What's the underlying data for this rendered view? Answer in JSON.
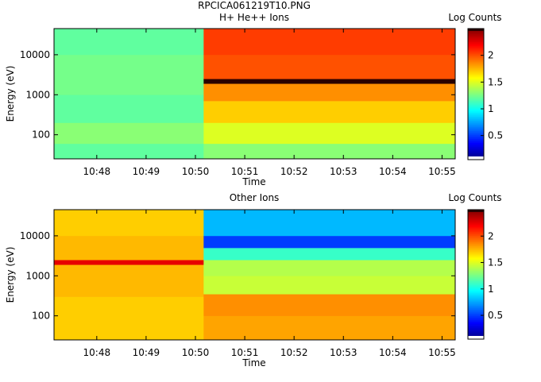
{
  "figure": {
    "title": "RPCICA061219T10.PNG"
  },
  "chart_data": [
    {
      "type": "heatmap",
      "title": "H+ He++ Ions",
      "xlabel": "Time",
      "ylabel": "Energy (eV)",
      "colorbar_label": "Log Counts",
      "y_scale": "log",
      "ylim": [
        25,
        45000
      ],
      "y_ticks": [
        {
          "value": 100,
          "label": "100"
        },
        {
          "value": 1000,
          "label": "1000"
        },
        {
          "value": 10000,
          "label": "10000"
        }
      ],
      "x_range": [
        "10:47:08",
        "10:55:16"
      ],
      "x_ticks": [
        {
          "value": "10:48:00",
          "label": "10:48"
        },
        {
          "value": "10:49:00",
          "label": "10:49"
        },
        {
          "value": "10:50:00",
          "label": "10:50"
        },
        {
          "value": "10:51:00",
          "label": "10:51"
        },
        {
          "value": "10:52:00",
          "label": "10:52"
        },
        {
          "value": "10:53:00",
          "label": "10:53"
        },
        {
          "value": "10:54:00",
          "label": "10:54"
        },
        {
          "value": "10:55:00",
          "label": "10:55"
        }
      ],
      "segments": [
        {
          "start": "10:47:08",
          "end": "10:50:10",
          "energy_levels": [
            {
              "energy_range": [
                25,
                60
              ],
              "log_counts": 1.2
            },
            {
              "energy_range": [
                60,
                200
              ],
              "log_counts": 1.3
            },
            {
              "energy_range": [
                200,
                1000
              ],
              "log_counts": 1.2
            },
            {
              "energy_range": [
                1000,
                10000
              ],
              "log_counts": 1.25
            },
            {
              "energy_range": [
                10000,
                45000
              ],
              "log_counts": 1.2
            }
          ]
        },
        {
          "start": "10:50:10",
          "end": "10:55:16",
          "energy_levels": [
            {
              "energy_range": [
                25,
                60
              ],
              "log_counts": 1.3
            },
            {
              "energy_range": [
                60,
                200
              ],
              "log_counts": 1.5
            },
            {
              "energy_range": [
                200,
                700
              ],
              "log_counts": 1.7
            },
            {
              "energy_range": [
                700,
                1900
              ],
              "log_counts": 1.85
            },
            {
              "energy_range": [
                1900,
                2500
              ],
              "log_counts": 2.5
            },
            {
              "energy_range": [
                2500,
                10000
              ],
              "log_counts": 2.0
            },
            {
              "energy_range": [
                10000,
                45000
              ],
              "log_counts": 2.05
            }
          ]
        }
      ],
      "colorbar": {
        "range": [
          0.05,
          2.5
        ],
        "ticks": [
          {
            "value": 0.5,
            "label": "0.5"
          },
          {
            "value": 1,
            "label": "1"
          },
          {
            "value": 1.5,
            "label": "1.5"
          },
          {
            "value": 2,
            "label": "2"
          }
        ]
      }
    },
    {
      "type": "heatmap",
      "title": "Other Ions",
      "xlabel": "Time",
      "ylabel": "Energy (eV)",
      "colorbar_label": "Log Counts",
      "y_scale": "log",
      "ylim": [
        25,
        45000
      ],
      "y_ticks": [
        {
          "value": 100,
          "label": "100"
        },
        {
          "value": 1000,
          "label": "1000"
        },
        {
          "value": 10000,
          "label": "10000"
        }
      ],
      "x_range": [
        "10:47:08",
        "10:55:16"
      ],
      "x_ticks": [
        {
          "value": "10:48:00",
          "label": "10:48"
        },
        {
          "value": "10:49:00",
          "label": "10:49"
        },
        {
          "value": "10:50:00",
          "label": "10:50"
        },
        {
          "value": "10:51:00",
          "label": "10:51"
        },
        {
          "value": "10:52:00",
          "label": "10:52"
        },
        {
          "value": "10:53:00",
          "label": "10:53"
        },
        {
          "value": "10:54:00",
          "label": "10:54"
        },
        {
          "value": "10:55:00",
          "label": "10:55"
        }
      ],
      "segments": [
        {
          "start": "10:47:08",
          "end": "10:50:10",
          "energy_levels": [
            {
              "energy_range": [
                25,
                300
              ],
              "log_counts": 1.7
            },
            {
              "energy_range": [
                300,
                1900
              ],
              "log_counts": 1.75
            },
            {
              "energy_range": [
                1900,
                2500
              ],
              "log_counts": 2.25
            },
            {
              "energy_range": [
                2500,
                10000
              ],
              "log_counts": 1.75
            },
            {
              "energy_range": [
                10000,
                45000
              ],
              "log_counts": 1.7
            }
          ]
        },
        {
          "start": "10:50:10",
          "end": "10:55:16",
          "energy_levels": [
            {
              "energy_range": [
                25,
                100
              ],
              "log_counts": 1.8
            },
            {
              "energy_range": [
                100,
                350
              ],
              "log_counts": 1.85
            },
            {
              "energy_range": [
                350,
                1000
              ],
              "log_counts": 1.45
            },
            {
              "energy_range": [
                1000,
                2500
              ],
              "log_counts": 1.4
            },
            {
              "energy_range": [
                2500,
                5000
              ],
              "log_counts": 1.1
            },
            {
              "energy_range": [
                5000,
                10000
              ],
              "log_counts": 0.5
            },
            {
              "energy_range": [
                10000,
                45000
              ],
              "log_counts": 0.8
            }
          ]
        }
      ],
      "colorbar": {
        "range": [
          0.05,
          2.5
        ],
        "ticks": [
          {
            "value": 0.5,
            "label": "0.5"
          },
          {
            "value": 1,
            "label": "1"
          },
          {
            "value": 1.5,
            "label": "1.5"
          },
          {
            "value": 2,
            "label": "2"
          }
        ]
      }
    }
  ]
}
